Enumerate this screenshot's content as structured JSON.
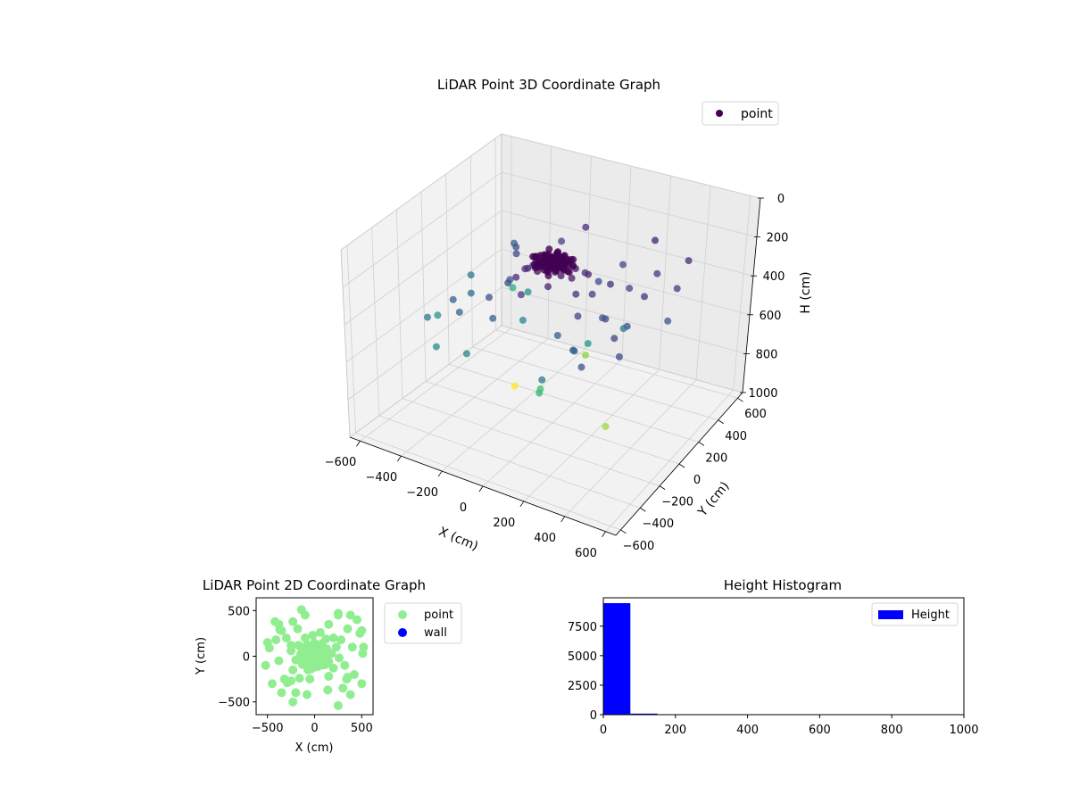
{
  "chart_data": [
    {
      "type": "scatter3d",
      "title": "LiDAR Point 3D Coordinate Graph",
      "xlabel": "X (cm)",
      "ylabel": "Y (cm)",
      "zlabel": "H (cm)",
      "xlim": [
        -650,
        650
      ],
      "ylim": [
        -650,
        650
      ],
      "zlim": [
        0,
        1000
      ],
      "z_inverted": true,
      "x_ticks": [
        "−600",
        "−400",
        "−200",
        "0",
        "200",
        "400",
        "600"
      ],
      "y_ticks": [
        "−600",
        "−400",
        "−200",
        "0",
        "200",
        "400",
        "600"
      ],
      "z_ticks": [
        "0",
        "200",
        "400",
        "600",
        "800",
        "1000"
      ],
      "x_tick_values": [
        -600,
        -400,
        -200,
        0,
        200,
        400,
        600
      ],
      "y_tick_values": [
        -600,
        -400,
        -200,
        0,
        200,
        400,
        600
      ],
      "z_tick_values": [
        0,
        200,
        400,
        600,
        800,
        1000
      ],
      "grid": true,
      "legend": {
        "entries": [
          "point"
        ],
        "placement": "top-right"
      },
      "colormap": "viridis",
      "series": [
        {
          "name": "point",
          "color_by": "height",
          "points": [
            [
              0,
              0,
              150
            ],
            [
              30,
              -20,
              160
            ],
            [
              -40,
              30,
              140
            ],
            [
              20,
              50,
              170
            ],
            [
              -60,
              -40,
              150
            ],
            [
              50,
              20,
              165
            ],
            [
              -20,
              60,
              155
            ],
            [
              70,
              -50,
              175
            ],
            [
              -80,
              10,
              160
            ],
            [
              10,
              -70,
              145
            ],
            [
              90,
              40,
              180
            ],
            [
              -30,
              -80,
              170
            ],
            [
              60,
              70,
              190
            ],
            [
              -90,
              -60,
              185
            ],
            [
              100,
              -10,
              200
            ],
            [
              -110,
              50,
              195
            ],
            [
              40,
              -110,
              210
            ],
            [
              -50,
              100,
              205
            ],
            [
              130,
              80,
              220
            ],
            [
              -130,
              -90,
              230
            ],
            [
              150,
              -60,
              240
            ],
            [
              -150,
              20,
              250
            ],
            [
              80,
              140,
              260
            ],
            [
              -70,
              -150,
              270
            ],
            [
              180,
              30,
              280
            ],
            [
              -170,
              120,
              290
            ],
            [
              200,
              -130,
              300
            ],
            [
              -200,
              -40,
              310
            ],
            [
              120,
              190,
              320
            ],
            [
              -100,
              200,
              330
            ],
            [
              230,
              100,
              250
            ],
            [
              -230,
              -150,
              340
            ],
            [
              260,
              -20,
              350
            ],
            [
              -250,
              60,
              360
            ],
            [
              150,
              -220,
              370
            ],
            [
              -160,
              -240,
              380
            ],
            [
              280,
              180,
              300
            ],
            [
              -300,
              200,
              310
            ],
            [
              320,
              -100,
              290
            ],
            [
              -320,
              -250,
              400
            ],
            [
              350,
              300,
              270
            ],
            [
              -350,
              280,
              330
            ],
            [
              400,
              100,
              260
            ],
            [
              -380,
              -50,
              420
            ],
            [
              420,
              -200,
              300
            ],
            [
              -450,
              -300,
              450
            ],
            [
              480,
              250,
              280
            ],
            [
              -500,
              150,
              460
            ],
            [
              450,
              400,
              230
            ],
            [
              -420,
              380,
              380
            ],
            [
              300,
              -350,
              320
            ],
            [
              -200,
              -400,
              500
            ],
            [
              150,
              350,
              310
            ],
            [
              -350,
              -400,
              520
            ],
            [
              500,
              -300,
              310
            ],
            [
              250,
              450,
              210
            ],
            [
              -100,
              450,
              240
            ],
            [
              380,
              -420,
              340
            ],
            [
              520,
              100,
              350
            ],
            [
              -520,
              -100,
              560
            ],
            [
              -450,
              420,
              640
            ],
            [
              200,
              -450,
              460
            ],
            [
              100,
              -300,
              650
            ],
            [
              -300,
              300,
              560
            ],
            [
              -150,
              0,
              510
            ],
            [
              50,
              -200,
              700
            ],
            [
              350,
              -150,
              820
            ],
            [
              0,
              300,
              800
            ],
            [
              -250,
              100,
              940
            ],
            [
              150,
              50,
              560
            ],
            [
              -380,
              -200,
              380
            ],
            [
              250,
              -250,
              400
            ],
            [
              300,
              100,
              460
            ],
            [
              -180,
              380,
              300
            ],
            [
              400,
              -50,
              330
            ]
          ]
        }
      ]
    },
    {
      "type": "scatter",
      "title": "LiDAR Point 2D Coordinate Graph",
      "xlabel": "X (cm)",
      "ylabel": "Y (cm)",
      "xlim": [
        -620,
        620
      ],
      "ylim": [
        -640,
        640
      ],
      "x_ticks": [
        "−500",
        "0",
        "500"
      ],
      "y_ticks": [
        "500",
        "0",
        "−500"
      ],
      "x_tick_values": [
        -500,
        0,
        500
      ],
      "y_tick_values": [
        500,
        0,
        -500
      ],
      "grid": false,
      "legend": {
        "entries": [
          "point",
          "wall"
        ],
        "placement": "outside-right"
      },
      "series": [
        {
          "name": "point",
          "color": "#90ee90",
          "points": [
            [
              0,
              0
            ],
            [
              30,
              -20
            ],
            [
              -40,
              30
            ],
            [
              20,
              50
            ],
            [
              -60,
              -40
            ],
            [
              50,
              20
            ],
            [
              -20,
              60
            ],
            [
              70,
              -50
            ],
            [
              -80,
              10
            ],
            [
              10,
              -70
            ],
            [
              90,
              40
            ],
            [
              -30,
              -80
            ],
            [
              60,
              70
            ],
            [
              -90,
              -60
            ],
            [
              100,
              -10
            ],
            [
              -110,
              50
            ],
            [
              40,
              -110
            ],
            [
              -50,
              100
            ],
            [
              130,
              80
            ],
            [
              -130,
              -90
            ],
            [
              150,
              -60
            ],
            [
              -150,
              20
            ],
            [
              80,
              140
            ],
            [
              -70,
              -150
            ],
            [
              180,
              30
            ],
            [
              -170,
              120
            ],
            [
              200,
              -130
            ],
            [
              -200,
              -40
            ],
            [
              120,
              190
            ],
            [
              -100,
              200
            ],
            [
              230,
              100
            ],
            [
              -230,
              -150
            ],
            [
              260,
              -20
            ],
            [
              -250,
              60
            ],
            [
              150,
              -220
            ],
            [
              -160,
              -240
            ],
            [
              280,
              180
            ],
            [
              -300,
              200
            ],
            [
              320,
              -100
            ],
            [
              -320,
              -250
            ],
            [
              350,
              300
            ],
            [
              -350,
              280
            ],
            [
              400,
              100
            ],
            [
              -380,
              -50
            ],
            [
              420,
              -200
            ],
            [
              -450,
              -300
            ],
            [
              480,
              250
            ],
            [
              -500,
              150
            ],
            [
              450,
              400
            ],
            [
              -420,
              380
            ],
            [
              300,
              -350
            ],
            [
              -200,
              -400
            ],
            [
              150,
              350
            ],
            [
              -350,
              -400
            ],
            [
              500,
              -300
            ],
            [
              250,
              450
            ],
            [
              -100,
              450
            ],
            [
              380,
              -420
            ],
            [
              520,
              100
            ],
            [
              -520,
              -100
            ],
            [
              -140,
              510
            ],
            [
              -380,
              350
            ],
            [
              -370,
              290
            ],
            [
              -230,
              380
            ],
            [
              -480,
              90
            ],
            [
              250,
              470
            ],
            [
              380,
              450
            ],
            [
              500,
              280
            ],
            [
              -410,
              180
            ],
            [
              -250,
              -270
            ],
            [
              -290,
              -290
            ],
            [
              -230,
              -500
            ],
            [
              -80,
              -420
            ],
            [
              140,
              -370
            ],
            [
              250,
              -540
            ],
            [
              340,
              -250
            ],
            [
              510,
              30
            ],
            [
              -20,
              230
            ],
            [
              60,
              260
            ],
            [
              -180,
              300
            ],
            [
              200,
              200
            ],
            [
              -250,
              120
            ],
            [
              350,
              -230
            ],
            [
              -50,
              -250
            ]
          ]
        },
        {
          "name": "wall",
          "color": "#0000ff",
          "points": []
        }
      ]
    },
    {
      "type": "bar",
      "title": "Height Histogram",
      "xlabel": "",
      "ylabel": "",
      "xlim": [
        0,
        1000
      ],
      "ylim": [
        0,
        9900
      ],
      "x_ticks": [
        "0",
        "200",
        "400",
        "600",
        "800",
        "1000"
      ],
      "y_ticks": [
        "0",
        "2500",
        "5000",
        "7500"
      ],
      "x_tick_values": [
        0,
        200,
        400,
        600,
        800,
        1000
      ],
      "y_tick_values": [
        0,
        2500,
        5000,
        7500
      ],
      "grid": false,
      "legend": {
        "entries": [
          "Height"
        ],
        "placement": "top-right"
      },
      "series": [
        {
          "name": "Height",
          "color": "#0000ff",
          "bins": [
            0,
            75,
            150,
            225,
            300,
            375,
            450,
            525,
            600,
            675,
            750,
            825,
            900,
            975
          ],
          "values": [
            9450,
            90,
            40,
            12,
            8,
            6,
            4,
            3,
            2,
            1,
            1,
            1,
            1
          ]
        }
      ]
    }
  ]
}
